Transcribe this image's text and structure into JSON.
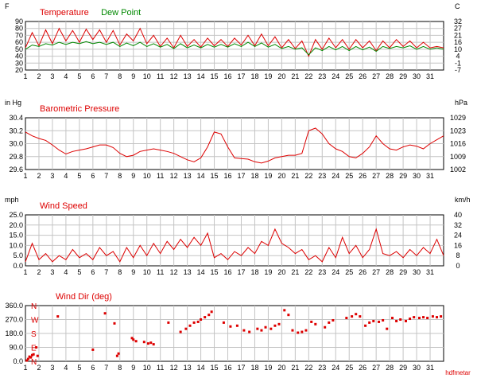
{
  "chart_data": [
    {
      "type": "line",
      "title": "",
      "legend": "top-left",
      "left_unit": "F",
      "right_unit": "C",
      "x": [
        1,
        1.5,
        2,
        2.5,
        3,
        3.5,
        4,
        4.5,
        5,
        5.5,
        6,
        6.5,
        7,
        7.5,
        8,
        8.5,
        9,
        9.5,
        10,
        10.5,
        11,
        11.5,
        12,
        12.5,
        13,
        13.5,
        14,
        14.5,
        15,
        15.5,
        16,
        16.5,
        17,
        17.5,
        18,
        18.5,
        19,
        19.5,
        20,
        20.5,
        21,
        21.5,
        22,
        22.5,
        23,
        23.5,
        24,
        24.5,
        25,
        25.5,
        26,
        26.5,
        27,
        27.5,
        28,
        28.5,
        29,
        29.5,
        30,
        30.5,
        31,
        31.5,
        32
      ],
      "xlim": [
        1,
        32
      ],
      "xticks": [
        "1",
        "2",
        "3",
        "4",
        "5",
        "6",
        "7",
        "8",
        "9",
        "10",
        "11",
        "12",
        "13",
        "14",
        "15",
        "16",
        "17",
        "18",
        "19",
        "20",
        "21",
        "22",
        "23",
        "24",
        "25",
        "26",
        "27",
        "28",
        "29",
        "30",
        "31"
      ],
      "ylim": [
        20,
        90
      ],
      "yticks_left": [
        "90",
        "80",
        "70",
        "60",
        "50",
        "40",
        "30",
        "20"
      ],
      "yticks_right": [
        "32",
        "27",
        "21",
        "16",
        "10",
        "4",
        "-1",
        "-7"
      ],
      "series": [
        {
          "name": "Temperature",
          "color": "#dd0000",
          "values": [
            52,
            74,
            55,
            78,
            58,
            80,
            62,
            77,
            60,
            79,
            64,
            78,
            60,
            77,
            56,
            72,
            62,
            80,
            58,
            70,
            54,
            66,
            52,
            70,
            54,
            64,
            53,
            66,
            55,
            64,
            54,
            66,
            56,
            70,
            55,
            72,
            55,
            68,
            52,
            64,
            51,
            62,
            40,
            64,
            50,
            66,
            52,
            64,
            50,
            64,
            52,
            62,
            48,
            62,
            52,
            64,
            54,
            62,
            52,
            60,
            52,
            54,
            52
          ]
        },
        {
          "name": "Dew Point",
          "color": "#008800",
          "values": [
            50,
            56,
            54,
            58,
            56,
            60,
            57,
            60,
            58,
            61,
            58,
            60,
            57,
            60,
            54,
            59,
            55,
            60,
            54,
            58,
            53,
            57,
            51,
            58,
            52,
            56,
            52,
            57,
            53,
            57,
            53,
            58,
            54,
            60,
            54,
            59,
            53,
            57,
            51,
            54,
            50,
            52,
            42,
            52,
            48,
            54,
            49,
            54,
            48,
            54,
            49,
            53,
            47,
            54,
            51,
            54,
            52,
            55,
            50,
            54,
            50,
            52,
            50
          ]
        }
      ]
    },
    {
      "type": "line",
      "left_unit": "in Hg",
      "right_unit": "hPa",
      "x": [
        1,
        1.5,
        2,
        2.5,
        3,
        3.5,
        4,
        4.5,
        5,
        5.5,
        6,
        6.5,
        7,
        7.5,
        8,
        8.5,
        9,
        9.5,
        10,
        10.5,
        11,
        11.5,
        12,
        12.5,
        13,
        13.5,
        14,
        14.5,
        15,
        15.5,
        16,
        16.5,
        17,
        17.5,
        18,
        18.5,
        19,
        19.5,
        20,
        20.5,
        21,
        21.5,
        22,
        22.5,
        23,
        23.5,
        24,
        24.5,
        25,
        25.5,
        26,
        26.5,
        27,
        27.5,
        28,
        28.5,
        29,
        29.5,
        30,
        30.5,
        31,
        31.5,
        32
      ],
      "xlim": [
        1,
        32
      ],
      "xticks": [
        "1",
        "2",
        "3",
        "4",
        "5",
        "6",
        "7",
        "8",
        "9",
        "10",
        "11",
        "12",
        "13",
        "14",
        "15",
        "16",
        "17",
        "18",
        "19",
        "20",
        "21",
        "22",
        "23",
        "24",
        "25",
        "26",
        "27",
        "28",
        "29",
        "30",
        "31"
      ],
      "ylim": [
        29.6,
        30.4
      ],
      "yticks_left": [
        "30.4",
        "30.2",
        "30.0",
        "29.8",
        "29.6"
      ],
      "yticks_right": [
        "1029",
        "1023",
        "1016",
        "1009",
        "1002"
      ],
      "series": [
        {
          "name": "Barometric Pressure",
          "color": "#dd0000",
          "values": [
            30.18,
            30.12,
            30.08,
            30.05,
            29.98,
            29.9,
            29.84,
            29.88,
            29.9,
            29.92,
            29.95,
            29.98,
            29.98,
            29.94,
            29.85,
            29.8,
            29.82,
            29.88,
            29.9,
            29.92,
            29.9,
            29.88,
            29.85,
            29.8,
            29.75,
            29.72,
            29.78,
            29.95,
            30.18,
            30.15,
            29.95,
            29.78,
            29.77,
            29.76,
            29.72,
            29.7,
            29.73,
            29.78,
            29.8,
            29.82,
            29.82,
            29.85,
            30.2,
            30.24,
            30.15,
            30.0,
            29.92,
            29.88,
            29.8,
            29.78,
            29.85,
            29.95,
            30.12,
            30.0,
            29.92,
            29.9,
            29.95,
            29.98,
            29.96,
            29.92,
            30.0,
            30.06,
            30.12
          ]
        }
      ]
    },
    {
      "type": "line",
      "left_unit": "mph",
      "right_unit": "km/h",
      "x": [
        1,
        1.5,
        2,
        2.5,
        3,
        3.5,
        4,
        4.5,
        5,
        5.5,
        6,
        6.5,
        7,
        7.5,
        8,
        8.5,
        9,
        9.5,
        10,
        10.5,
        11,
        11.5,
        12,
        12.5,
        13,
        13.5,
        14,
        14.5,
        15,
        15.5,
        16,
        16.5,
        17,
        17.5,
        18,
        18.5,
        19,
        19.5,
        20,
        20.5,
        21,
        21.5,
        22,
        22.5,
        23,
        23.5,
        24,
        24.5,
        25,
        25.5,
        26,
        26.5,
        27,
        27.5,
        28,
        28.5,
        29,
        29.5,
        30,
        30.5,
        31,
        31.5,
        32
      ],
      "xlim": [
        1,
        32
      ],
      "xticks": [
        "1",
        "2",
        "3",
        "4",
        "5",
        "6",
        "7",
        "8",
        "9",
        "10",
        "11",
        "12",
        "13",
        "14",
        "15",
        "16",
        "17",
        "18",
        "19",
        "20",
        "21",
        "22",
        "23",
        "24",
        "25",
        "26",
        "27",
        "28",
        "29",
        "30",
        "31"
      ],
      "ylim": [
        0,
        25
      ],
      "yticks_left": [
        "25.0",
        "20.0",
        "15.0",
        "10.0",
        "5.0",
        "0.0"
      ],
      "yticks_right": [
        "40",
        "32",
        "24",
        "16",
        "8",
        "0"
      ],
      "series": [
        {
          "name": "Wind Speed",
          "color": "#dd0000",
          "values": [
            2,
            11,
            3,
            6,
            2,
            5,
            3,
            8,
            4,
            6,
            3,
            9,
            5,
            7,
            2,
            9,
            4,
            10,
            5,
            11,
            6,
            12,
            8,
            13,
            9,
            14,
            10,
            16,
            4,
            6,
            3,
            7,
            5,
            9,
            6,
            12,
            10,
            18,
            11,
            9,
            6,
            8,
            3,
            5,
            2,
            9,
            4,
            14,
            6,
            10,
            4,
            8,
            18,
            6,
            5,
            7,
            4,
            8,
            5,
            9,
            6,
            13,
            5
          ]
        }
      ]
    },
    {
      "type": "scatter",
      "x": [
        1.1,
        1.2,
        1.3,
        1.4,
        1.5,
        1.6,
        1.8,
        1.9,
        3.4,
        6,
        6.9,
        7.6,
        7.8,
        7.9,
        8.9,
        9.0,
        9.2,
        9.8,
        10.1,
        10.3,
        10.5,
        11.6,
        12.5,
        12.9,
        13.2,
        13.5,
        13.8,
        14.0,
        14.3,
        14.6,
        14.8,
        15.7,
        16.2,
        16.7,
        17.2,
        17.6,
        18.2,
        18.5,
        18.8,
        19.2,
        19.5,
        19.8,
        20.2,
        20.5,
        20.8,
        21.2,
        21.5,
        21.8,
        22.2,
        22.5,
        23.2,
        23.5,
        23.8,
        24.8,
        25.2,
        25.5,
        25.8,
        26.2,
        26.5,
        26.8,
        27.2,
        27.5,
        27.8,
        28.2,
        28.5,
        28.8,
        29.2,
        29.5,
        29.8,
        30.2,
        30.5,
        30.8,
        31.2,
        31.5,
        31.8
      ],
      "xlim": [
        1,
        32
      ],
      "xticks": [
        "1",
        "2",
        "3",
        "4",
        "5",
        "6",
        "7",
        "8",
        "9",
        "10",
        "11",
        "12",
        "13",
        "14",
        "15",
        "16",
        "17",
        "18",
        "19",
        "20",
        "21",
        "22",
        "23",
        "24",
        "25",
        "26",
        "27",
        "28",
        "29",
        "30",
        "31"
      ],
      "ylim": [
        0,
        360
      ],
      "yticks_left": [
        "360.0",
        "270.0",
        "180.0",
        "90.0",
        "0.0"
      ],
      "compass": [
        "N",
        "W",
        "S",
        "E",
        "N"
      ],
      "footer": "hdfmetar",
      "series": [
        {
          "name": "Wind Dir (deg)",
          "color": "#dd0000",
          "values": [
            5,
            15,
            30,
            25,
            40,
            45,
            90,
            35,
            290,
            75,
            310,
            245,
            35,
            50,
            150,
            140,
            130,
            125,
            115,
            120,
            110,
            250,
            190,
            210,
            230,
            250,
            255,
            270,
            285,
            300,
            320,
            250,
            225,
            230,
            200,
            190,
            210,
            200,
            220,
            210,
            230,
            240,
            330,
            300,
            200,
            185,
            190,
            200,
            255,
            240,
            220,
            250,
            265,
            280,
            290,
            305,
            290,
            230,
            250,
            260,
            255,
            265,
            210,
            280,
            260,
            270,
            260,
            275,
            285,
            280,
            285,
            280,
            290,
            285,
            290
          ]
        }
      ]
    }
  ]
}
